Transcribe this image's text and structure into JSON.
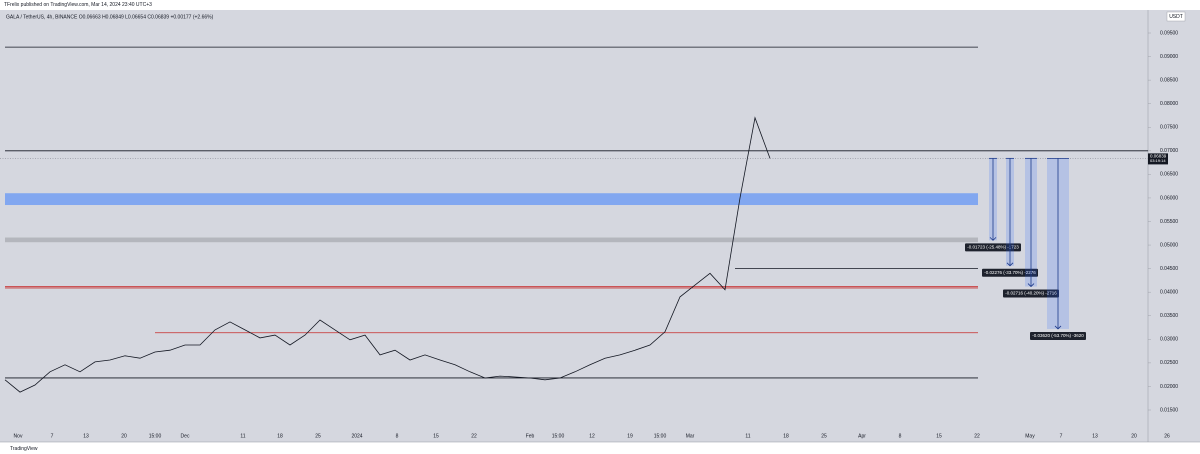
{
  "header": {
    "publisher": "TFrelix published on TradingView.com, Mar 14, 2024 23:40 UTC+3",
    "footer": "TradingView"
  },
  "chart_data": {
    "type": "line",
    "title": "GALA / TetherUS, 4h, BINANCE  O0.06663 H0.06849 L0.06654 C0.06839 +0.00177 (+2.66%)",
    "currency": "USDT",
    "color": "#131722",
    "categories": [
      null,
      null,
      null,
      null,
      null,
      null,
      null,
      null,
      null,
      null,
      null,
      null,
      null,
      null,
      null,
      null,
      null,
      null,
      null,
      null,
      null,
      null,
      null,
      null,
      null,
      null,
      null,
      null,
      null,
      null,
      null,
      null,
      null,
      null,
      null,
      null,
      null,
      null,
      null,
      null,
      null,
      null,
      null,
      null,
      null,
      null,
      null,
      null,
      null,
      null,
      null,
      null
    ],
    "values": [
      0.0214,
      0.0188,
      0.0203,
      0.0231,
      0.0246,
      0.0231,
      0.0252,
      0.0256,
      0.0265,
      0.026,
      0.0273,
      0.0277,
      0.0288,
      0.0288,
      0.032,
      0.0337,
      0.032,
      0.0303,
      0.0309,
      0.0288,
      0.0309,
      0.0341,
      0.032,
      0.0299,
      0.0309,
      0.0267,
      0.0277,
      0.0256,
      0.0267,
      0.0256,
      0.0246,
      0.0231,
      0.0218,
      0.0222,
      0.022,
      0.0218,
      0.0214,
      0.0218,
      0.0231,
      0.0246,
      0.026,
      0.0267,
      0.0277,
      0.0288,
      0.0316,
      0.039,
      0.0415,
      0.044,
      0.0405,
      0.06,
      0.077,
      0.0684
    ],
    "last_price": {
      "value": 0.06839,
      "label": "0.06839",
      "countdown": "03:19:14"
    },
    "ylim": [
      0.015,
      0.095
    ],
    "yticks": [
      {
        "value": 0.015,
        "label": "0.01500"
      },
      {
        "value": 0.02,
        "label": "0.02000"
      },
      {
        "value": 0.025,
        "label": "0.02500"
      },
      {
        "value": 0.03,
        "label": "0.03000"
      },
      {
        "value": 0.035,
        "label": "0.03500"
      },
      {
        "value": 0.04,
        "label": "0.04000"
      },
      {
        "value": 0.045,
        "label": "0.04500"
      },
      {
        "value": 0.05,
        "label": "0.05000"
      },
      {
        "value": 0.055,
        "label": "0.05500"
      },
      {
        "value": 0.06,
        "label": "0.06000"
      },
      {
        "value": 0.065,
        "label": "0.06500"
      },
      {
        "value": 0.07,
        "label": "0.07000"
      },
      {
        "value": 0.075,
        "label": "0.07500"
      },
      {
        "value": 0.08,
        "label": "0.08000"
      },
      {
        "value": 0.085,
        "label": "0.08500"
      },
      {
        "value": 0.09,
        "label": "0.09000"
      },
      {
        "value": 0.095,
        "label": "0.09500"
      }
    ],
    "xticks": [
      "Nov",
      "7",
      "13",
      "20",
      "15:00",
      "Dec",
      "11",
      "18",
      "25",
      "2024",
      "8",
      "15",
      "22",
      "Feb",
      "15:00",
      "12",
      "19",
      "15:00",
      "Mar",
      "11",
      "18",
      "25",
      "Apr",
      "8",
      "15",
      "22",
      "May",
      "7",
      "13",
      "20",
      "26"
    ],
    "levels": [
      {
        "value": 0.092,
        "color": "#131722"
      },
      {
        "value": 0.07,
        "color": "#131722"
      },
      {
        "value": 0.045,
        "color": "#131722"
      },
      {
        "value": 0.0412,
        "color": "#c62828"
      },
      {
        "value": 0.0409,
        "color": "#c62828"
      },
      {
        "value": 0.0314,
        "color": "#c62828"
      },
      {
        "value": 0.0218,
        "color": "#131722"
      }
    ],
    "zones": [
      {
        "from": 0.0585,
        "to": 0.061,
        "color": "#82a7f0"
      },
      {
        "from": 0.0506,
        "to": 0.0516,
        "color": "#b4b6bd"
      }
    ],
    "measures": [
      {
        "from": 0.0684,
        "to": 0.051,
        "label": "-0.01723 (-25.48%) -1723"
      },
      {
        "from": 0.0684,
        "to": 0.0456,
        "label": "-0.02276 (-33.70%) -2276"
      },
      {
        "from": 0.0684,
        "to": 0.0412,
        "label": "-0.02716 (-40.20%) -2716"
      },
      {
        "from": 0.0684,
        "to": 0.0322,
        "label": "-0.03620 (-53.70%) -3620"
      }
    ]
  }
}
